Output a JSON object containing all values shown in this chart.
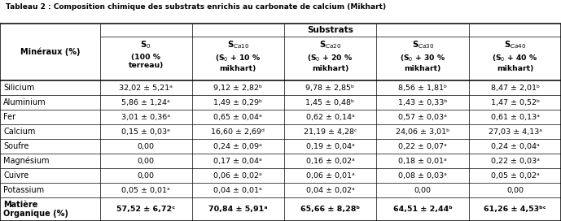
{
  "title": "Tableau 2 : Composition chimique des substrats enrichis au carbonate de calcium (Mikhart)",
  "col_headers_top": [
    "S$_0$",
    "S$_{Ca10}$",
    "S$_{Ca20}$",
    "S$_{Ca30}$",
    "S$_{Ca40}$"
  ],
  "col_headers_sub": [
    "(100 %\nterreau)",
    "(S$_0$ + 10 %\nmikhart)",
    "(S$_0$ + 20 %\nmikhart)",
    "(S$_0$ + 30 %\nmikhart)",
    "(S$_0$ + 40 %\nmikhart)"
  ],
  "rows": [
    {
      "label": "Silicium",
      "values": [
        "32,02 ± 5,21ᵃ",
        "9,12 ± 2,82ᵇ",
        "9,78 ± 2,85ᵇ",
        "8,56 ± 1,81ᵇ",
        "8,47 ± 2,01ᵇ"
      ],
      "bold": false
    },
    {
      "label": "Aluminium",
      "values": [
        "5,86 ± 1,24ᵃ",
        "1,49 ± 0,29ᵇ",
        "1,45 ± 0,48ᵇ",
        "1,43 ± 0,33ᵇ",
        "1,47 ± 0,52ᵇ"
      ],
      "bold": false
    },
    {
      "label": "Fer",
      "values": [
        "3,01 ± 0,36ᵃ",
        "0,65 ± 0,04ᵃ",
        "0,62 ± 0,14ᵃ",
        "0,57 ± 0,03ᵃ",
        "0,61 ± 0,13ᵃ"
      ],
      "bold": false
    },
    {
      "label": "Calcium",
      "values": [
        "0,15 ± 0,03ᵉ",
        "16,60 ± 2,69ᵈ",
        "21,19 ± 4,28ᶜ",
        "24,06 ± 3,01ᵇ",
        "27,03 ± 4,13ᵃ"
      ],
      "bold": false
    },
    {
      "label": "Soufre",
      "values": [
        "0,00",
        "0,24 ± 0,09ᵃ",
        "0,19 ± 0,04ᵃ",
        "0,22 ± 0,07ᵃ",
        "0,24 ± 0,04ᵃ"
      ],
      "bold": false
    },
    {
      "label": "Magnésium",
      "values": [
        "0,00",
        "0,17 ± 0,04ᵃ",
        "0,16 ± 0,02ᵃ",
        "0,18 ± 0,01ᵃ",
        "0,22 ± 0,03ᵃ"
      ],
      "bold": false
    },
    {
      "label": "Cuivre",
      "values": [
        "0,00",
        "0,06 ± 0,02ᵃ",
        "0,06 ± 0,01ᵃ",
        "0,08 ± 0,03ᵃ",
        "0,05 ± 0,02ᵃ"
      ],
      "bold": false
    },
    {
      "label": "Potassium",
      "values": [
        "0,05 ± 0,01ᵃ",
        "0,04 ± 0,01ᵃ",
        "0,04 ± 0,02ᵃ",
        "0,00",
        "0,00"
      ],
      "bold": false
    },
    {
      "label": "Matière\nOrganique (%)",
      "values": [
        "57,52 ± 6,72ᶜ",
        "70,84 ± 5,91ᵃ",
        "65,66 ± 8,28ᵇ",
        "64,51 ± 2,44ᵇ",
        "61,26 ± 4,53ᵇᶜ"
      ],
      "bold": true
    }
  ],
  "bg_color": "#ffffff",
  "line_color": "#000000",
  "font_size": 7.0,
  "title_font_size": 6.5
}
